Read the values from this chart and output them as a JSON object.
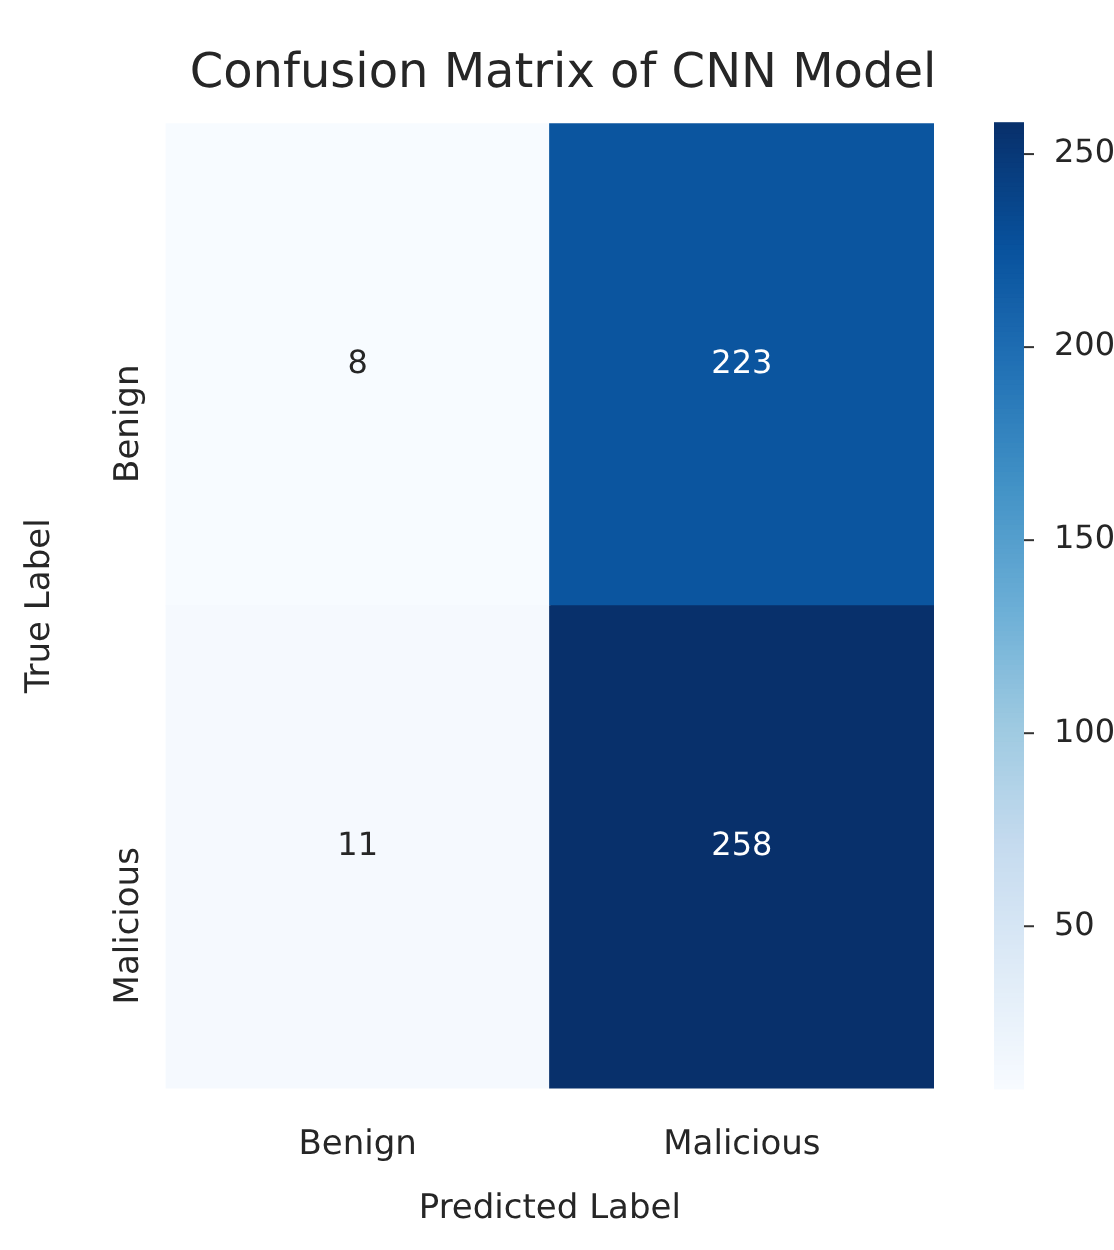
{
  "chart_data": {
    "type": "heatmap",
    "title": "Confusion Matrix of CNN Model",
    "xlabel": "Predicted Label",
    "ylabel": "True Label",
    "categories": [
      "Benign",
      "Malicious"
    ],
    "y_categories": [
      "Benign",
      "Malicious"
    ],
    "cells": [
      [
        8,
        223
      ],
      [
        11,
        258
      ]
    ],
    "clim": [
      8,
      258
    ],
    "cticks": [
      50,
      100,
      150,
      200,
      250
    ],
    "data_labels": true
  }
}
